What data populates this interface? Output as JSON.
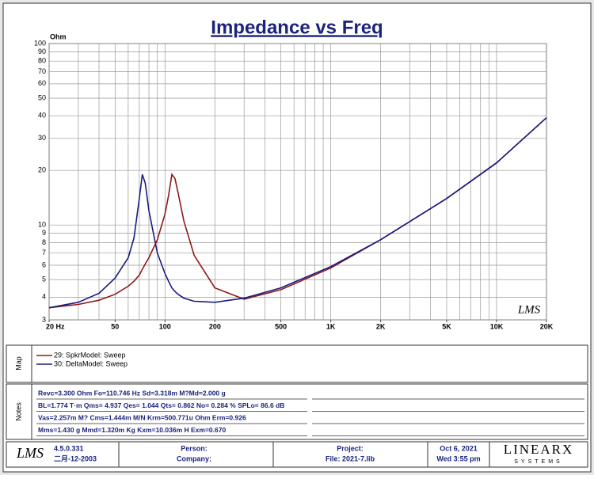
{
  "chart_data": {
    "type": "line",
    "title": "Impedance vs Freq",
    "y_label": "Ohm",
    "xscale": "log",
    "yscale": "log",
    "grid": true,
    "xlim": [
      20,
      20000
    ],
    "ylim": [
      3,
      100
    ],
    "xticks": [
      {
        "value": 20,
        "label": "20 Hz"
      },
      50,
      100,
      200,
      500,
      {
        "value": 1000,
        "label": "1K"
      },
      {
        "value": 2000,
        "label": "2K"
      },
      {
        "value": 5000,
        "label": "5K"
      },
      {
        "value": 10000,
        "label": "10K"
      },
      {
        "value": 20000,
        "label": "20K"
      }
    ],
    "xgrid": [
      20,
      30,
      40,
      50,
      60,
      70,
      80,
      90,
      100,
      200,
      300,
      400,
      500,
      600,
      700,
      800,
      900,
      1000,
      2000,
      3000,
      4000,
      5000,
      6000,
      7000,
      8000,
      9000,
      10000,
      20000
    ],
    "yticks": [
      3,
      4,
      5,
      6,
      7,
      8,
      9,
      10,
      20,
      30,
      40,
      50,
      60,
      70,
      80,
      90,
      100
    ],
    "x": [
      20,
      30,
      40,
      50,
      60,
      65,
      70,
      73,
      76,
      80,
      90,
      100,
      105,
      110,
      115,
      120,
      130,
      150,
      200,
      300,
      500,
      1000,
      2000,
      5000,
      10000,
      20000
    ],
    "series": [
      {
        "name": "29: SpkrModel: Sweep",
        "color": "#8b1a1a",
        "values": [
          3.5,
          3.65,
          3.85,
          4.15,
          4.6,
          4.9,
          5.3,
          5.7,
          6.1,
          6.6,
          8.3,
          11.5,
          14.5,
          19,
          18,
          15,
          10.5,
          6.8,
          4.5,
          3.9,
          4.4,
          5.8,
          8.3,
          14,
          22,
          39
        ]
      },
      {
        "name": "30: DeltaModel: Sweep",
        "color": "#1a1a80",
        "values": [
          3.5,
          3.75,
          4.2,
          5.1,
          6.6,
          8.5,
          14,
          19,
          17,
          12,
          7,
          5.4,
          4.9,
          4.5,
          4.3,
          4.15,
          3.95,
          3.8,
          3.75,
          3.95,
          4.5,
          5.9,
          8.3,
          14,
          22,
          39
        ]
      }
    ],
    "watermark": "LMS"
  },
  "map": {
    "label": "Map"
  },
  "notes": {
    "label": "Notes",
    "lines": [
      "Revc=3.300 Ohm  Fo=110.746 Hz  Sd=3.318m M?Md=2.000 g",
      "BL=1.774 T·m  Qms= 4.937  Qes= 1.044  Qts= 0.862  No= 0.284 %  SPLo= 86.6 dB",
      "Vas=2.257m M?  Cms=1.444m M/N  Krm=500.771u Ohm  Erm=0.926",
      "Mms=1.430 g  Mmd=1.320m Kg  Kxm=10.036m H  Exm=0.670"
    ]
  },
  "footer": {
    "logo": "LMS",
    "version": "4.5.0.331",
    "build_date": "二月-12-2003",
    "person": "Person:",
    "company": "Company:",
    "project": "Project:",
    "file": "File: 2021-7.lib",
    "date": "Oct  6, 2021",
    "time": "Wed  3:55 pm",
    "brand": "LINEARX",
    "brand_sub": "SYSTEMS"
  }
}
